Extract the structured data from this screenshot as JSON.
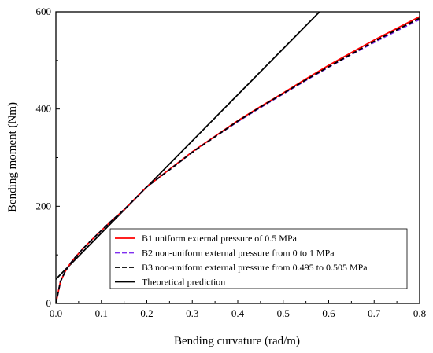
{
  "chart_data": {
    "type": "line",
    "xlabel": "Bending curvature (rad/m)",
    "ylabel": "Bending moment (Nm)",
    "xlim": [
      0,
      0.8
    ],
    "ylim": [
      0,
      600
    ],
    "xticks": [
      "0.0",
      "0.1",
      "0.2",
      "0.3",
      "0.4",
      "0.5",
      "0.6",
      "0.7",
      "0.8"
    ],
    "yticks": [
      "0",
      "200",
      "400",
      "600"
    ],
    "grid": false,
    "legend_position": "bottom-right",
    "series": [
      {
        "name": "B1 uniform external pressure of 0.5 MPa",
        "color": "#ff0000",
        "style": "solid",
        "x": [
          0,
          0.01,
          0.02,
          0.03,
          0.04,
          0.05,
          0.06,
          0.08,
          0.1,
          0.12,
          0.15,
          0.2,
          0.25,
          0.3,
          0.35,
          0.4,
          0.45,
          0.5,
          0.55,
          0.6,
          0.65,
          0.7,
          0.75,
          0.8
        ],
        "y": [
          0,
          45,
          65,
          80,
          92,
          103,
          113,
          132,
          150,
          168,
          193,
          240,
          276,
          312,
          344,
          376,
          405,
          433,
          462,
          490,
          516,
          542,
          566,
          590
        ]
      },
      {
        "name": "B2 non-uniform external pressure from 0 to 1 MPa",
        "color": "#7f2ff0",
        "style": "dashed",
        "x": [
          0,
          0.01,
          0.02,
          0.03,
          0.04,
          0.05,
          0.06,
          0.08,
          0.1,
          0.12,
          0.15,
          0.2,
          0.25,
          0.3,
          0.35,
          0.4,
          0.45,
          0.5,
          0.55,
          0.6,
          0.65,
          0.7,
          0.75,
          0.8
        ],
        "y": [
          0,
          45,
          65,
          80,
          92,
          103,
          113,
          132,
          150,
          168,
          193,
          240,
          275,
          311,
          343,
          374,
          403,
          431,
          459,
          486,
          512,
          537,
          561,
          584
        ]
      },
      {
        "name": "B3 non-uniform external pressure from 0.495 to 0.505 MPa",
        "color": "#000000",
        "style": "dashed",
        "x": [
          0,
          0.01,
          0.02,
          0.03,
          0.04,
          0.05,
          0.06,
          0.08,
          0.1,
          0.12,
          0.15,
          0.2,
          0.25,
          0.3,
          0.35,
          0.4,
          0.45,
          0.5,
          0.55,
          0.6,
          0.65,
          0.7,
          0.75,
          0.8
        ],
        "y": [
          0,
          45,
          65,
          80,
          92,
          103,
          113,
          132,
          150,
          168,
          193,
          240,
          275,
          311,
          343,
          375,
          404,
          432,
          460,
          487,
          513,
          539,
          563,
          587
        ]
      },
      {
        "name": "Theoretical prediction",
        "color": "#000000",
        "style": "solid",
        "x": [
          0,
          0.58
        ],
        "y": [
          50,
          600
        ]
      }
    ]
  }
}
